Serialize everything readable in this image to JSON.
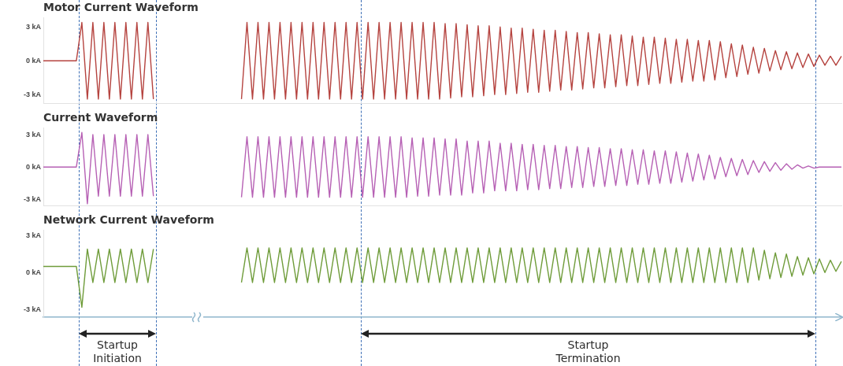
{
  "chart_data": [
    {
      "type": "line",
      "title": "Motor Current Waveform",
      "tick_labels": "y",
      "marker": "none",
      "ylim": [
        -3.8,
        3.8
      ],
      "yticks": [
        {
          "value": 3,
          "label": "3 kA"
        },
        {
          "value": 0,
          "label": "0 kA"
        },
        {
          "value": -3,
          "label": "-3 kA"
        }
      ],
      "categories": [
        null,
        null,
        null,
        null,
        null,
        null,
        null,
        null,
        null,
        null,
        null,
        null,
        null,
        null,
        null,
        null,
        null,
        null,
        null,
        null,
        null,
        null,
        null,
        null,
        null,
        null,
        null,
        null,
        null,
        null,
        null,
        null,
        null,
        null,
        null,
        null,
        null,
        null,
        null,
        null,
        null,
        null,
        null,
        null,
        null,
        null,
        null,
        null,
        null,
        null,
        null,
        null,
        null,
        null,
        null,
        null,
        null,
        null,
        null,
        null,
        null,
        null,
        null,
        null,
        null,
        null,
        null,
        null,
        null,
        null,
        null,
        null,
        null,
        null,
        null,
        null,
        null,
        null,
        null,
        null,
        null,
        null,
        null,
        null,
        null,
        null,
        null,
        null,
        null,
        null,
        null,
        null,
        null,
        null,
        null,
        null,
        null,
        null,
        null,
        null,
        null,
        null,
        null,
        null,
        null,
        null,
        null,
        null,
        null,
        null,
        null,
        null,
        null,
        null,
        null,
        null,
        null,
        null,
        null,
        null,
        null,
        null,
        null,
        null,
        null,
        null,
        null,
        null,
        null,
        null,
        null,
        null,
        null,
        null,
        null,
        null,
        null,
        null,
        null,
        null,
        null,
        null,
        null,
        null,
        null,
        null
      ],
      "series": [
        {
          "color": "#b5433f",
          "values": [
            0,
            0,
            0,
            0,
            0,
            0,
            0,
            3.4,
            -3.4,
            3.4,
            -3.4,
            3.4,
            -3.4,
            3.4,
            -3.4,
            3.4,
            -3.4,
            3.4,
            -3.4,
            3.4,
            -3.4,
            null,
            null,
            null,
            null,
            null,
            null,
            null,
            null,
            null,
            null,
            null,
            null,
            null,
            null,
            null,
            null,
            null,
            null,
            null,
            null,
            null,
            null,
            null,
            null,
            null,
            null,
            null,
            null,
            null,
            null,
            null,
            null,
            null,
            null,
            null,
            null,
            null,
            null,
            null,
            null,
            null,
            null,
            null,
            null,
            null,
            null,
            null,
            null,
            null,
            null,
            null,
            null,
            null,
            null,
            null,
            null,
            null,
            null,
            null,
            null,
            null,
            null,
            null,
            null,
            null,
            null,
            null,
            null,
            null,
            null,
            null,
            null,
            null,
            null,
            null,
            null,
            null,
            null,
            null,
            null,
            null,
            null,
            null,
            null,
            null,
            null,
            null,
            null,
            null,
            null,
            null,
            null,
            null,
            null,
            null,
            null,
            null,
            null,
            null,
            null,
            null,
            null,
            null,
            null,
            null,
            null,
            null,
            null,
            null,
            null,
            null,
            null,
            null,
            null,
            null,
            null,
            null,
            null,
            null,
            null,
            null,
            null,
            null,
            null,
            null
          ]
        },
        {
          "color": "#b5433f",
          "values": [
            null,
            null,
            null,
            null,
            null,
            null,
            null,
            null,
            null,
            null,
            null,
            null,
            null,
            null,
            null,
            null,
            null,
            null,
            null,
            null,
            null,
            null,
            null,
            null,
            null,
            null,
            null,
            null,
            null,
            null,
            null,
            null,
            null,
            null,
            null,
            null,
            -3.4,
            3.4,
            -3.4,
            3.4,
            -3.4,
            3.4,
            -3.4,
            3.4,
            -3.4,
            3.4,
            -3.4,
            3.4,
            -3.4,
            3.4,
            -3.4,
            3.4,
            -3.4,
            3.4,
            -3.4,
            3.4,
            -3.4,
            3.4,
            -3.4,
            3.4,
            -3.4,
            3.4,
            -3.4,
            3.4,
            -3.4,
            3.4,
            -3.4,
            3.4,
            -3.4,
            3.4,
            -3.4,
            3.4,
            -3.4,
            3.3,
            -3.3,
            3.3,
            -3.2,
            3.2,
            -3.2,
            3.1,
            -3.1,
            3.1,
            -3.0,
            3.0,
            -3.0,
            2.9,
            -2.9,
            2.9,
            -2.8,
            2.8,
            -2.8,
            2.7,
            -2.7,
            2.7,
            -2.6,
            2.6,
            -2.6,
            2.5,
            -2.5,
            2.5,
            -2.4,
            2.4,
            -2.4,
            2.3,
            -2.3,
            2.3,
            -2.2,
            2.2,
            -2.2,
            2.1,
            -2.1,
            2.1,
            -2.0,
            2.0,
            -2.0,
            1.9,
            -1.9,
            1.9,
            -1.8,
            1.8,
            -1.8,
            1.8,
            -1.7,
            1.7,
            -1.5,
            1.5,
            -1.4,
            1.4,
            -1.2,
            1.2,
            -1.1,
            1.1,
            -0.9,
            0.9,
            -0.8,
            0.8,
            -0.7,
            0.7,
            -0.6,
            0.6,
            -0.5,
            0.5,
            -0.4,
            0.4,
            -0.4,
            0.4
          ]
        }
      ]
    },
    {
      "type": "line",
      "title": "Current Waveform",
      "tick_labels": "y",
      "marker": "none",
      "ylim": [
        -3.6,
        3.6
      ],
      "yticks": [
        {
          "value": 3,
          "label": "3 kA"
        },
        {
          "value": 0,
          "label": "0 kA"
        },
        {
          "value": -3,
          "label": "-3 kA"
        }
      ],
      "categories": [
        null,
        null,
        null,
        null,
        null,
        null,
        null,
        null,
        null,
        null,
        null,
        null,
        null,
        null,
        null,
        null,
        null,
        null,
        null,
        null,
        null,
        null,
        null,
        null,
        null,
        null,
        null,
        null,
        null,
        null,
        null,
        null,
        null,
        null,
        null,
        null,
        null,
        null,
        null,
        null,
        null,
        null,
        null,
        null,
        null,
        null,
        null,
        null,
        null,
        null,
        null,
        null,
        null,
        null,
        null,
        null,
        null,
        null,
        null,
        null,
        null,
        null,
        null,
        null,
        null,
        null,
        null,
        null,
        null,
        null,
        null,
        null,
        null,
        null,
        null,
        null,
        null,
        null,
        null,
        null,
        null,
        null,
        null,
        null,
        null,
        null,
        null,
        null,
        null,
        null,
        null,
        null,
        null,
        null,
        null,
        null,
        null,
        null,
        null,
        null,
        null,
        null,
        null,
        null,
        null,
        null,
        null,
        null,
        null,
        null,
        null,
        null,
        null,
        null,
        null,
        null,
        null,
        null,
        null,
        null,
        null,
        null,
        null,
        null,
        null,
        null,
        null,
        null,
        null,
        null,
        null,
        null,
        null,
        null,
        null,
        null,
        null,
        null,
        null,
        null,
        null,
        null,
        null,
        null,
        null,
        null
      ],
      "series": [
        {
          "color": "#b660b4",
          "values": [
            0,
            0,
            0,
            0,
            0,
            0,
            0,
            3.2,
            -3.4,
            3.0,
            -2.7,
            3.0,
            -2.7,
            3.0,
            -2.7,
            3.0,
            -2.7,
            3.0,
            -2.7,
            3.0,
            -2.7,
            null,
            null,
            null,
            null,
            null,
            null,
            null,
            null,
            null,
            null,
            null,
            null,
            null,
            null,
            null,
            null,
            null,
            null,
            null,
            null,
            null,
            null,
            null,
            null,
            null,
            null,
            null,
            null,
            null,
            null,
            null,
            null,
            null,
            null,
            null,
            null,
            null,
            null,
            null,
            null,
            null,
            null,
            null,
            null,
            null,
            null,
            null,
            null,
            null,
            null,
            null,
            null,
            null,
            null,
            null,
            null,
            null,
            null,
            null,
            null,
            null,
            null,
            null,
            null,
            null,
            null,
            null,
            null,
            null,
            null,
            null,
            null,
            null,
            null,
            null,
            null,
            null,
            null,
            null,
            null,
            null,
            null,
            null,
            null,
            null,
            null,
            null,
            null,
            null,
            null,
            null,
            null,
            null,
            null,
            null,
            null,
            null,
            null,
            null,
            null,
            null,
            null,
            null,
            null,
            null,
            null,
            null,
            null,
            null,
            null,
            null,
            null,
            null,
            null,
            null,
            null,
            null,
            null,
            null,
            null,
            null,
            null,
            null,
            null,
            null
          ]
        },
        {
          "color": "#b660b4",
          "values": [
            null,
            null,
            null,
            null,
            null,
            null,
            null,
            null,
            null,
            null,
            null,
            null,
            null,
            null,
            null,
            null,
            null,
            null,
            null,
            null,
            null,
            null,
            null,
            null,
            null,
            null,
            null,
            null,
            null,
            null,
            null,
            null,
            null,
            null,
            null,
            null,
            -2.8,
            2.8,
            -2.8,
            2.8,
            -2.8,
            2.8,
            -2.8,
            2.8,
            -2.8,
            2.8,
            -2.8,
            2.8,
            -2.8,
            2.8,
            -2.8,
            2.8,
            -2.8,
            2.8,
            -2.8,
            2.8,
            -2.8,
            2.8,
            -2.8,
            2.8,
            -2.8,
            2.8,
            -2.8,
            2.8,
            -2.8,
            2.8,
            -2.8,
            2.7,
            -2.7,
            2.7,
            -2.7,
            2.7,
            -2.6,
            2.6,
            -2.6,
            2.6,
            -2.6,
            2.4,
            -2.4,
            2.4,
            -2.4,
            2.4,
            -2.2,
            2.2,
            -2.2,
            2.2,
            -2.2,
            2.1,
            -2.1,
            2.1,
            -2.1,
            2.0,
            -2.0,
            2.0,
            -2.0,
            1.9,
            -1.9,
            1.9,
            -1.9,
            1.8,
            -1.8,
            1.8,
            -1.8,
            1.7,
            -1.7,
            1.7,
            -1.7,
            1.6,
            -1.6,
            1.6,
            -1.6,
            1.5,
            -1.5,
            1.5,
            -1.5,
            1.4,
            -1.4,
            1.3,
            -1.3,
            1.2,
            -1.2,
            1.1,
            -1.1,
            0.9,
            -0.9,
            0.8,
            -0.8,
            0.7,
            -0.7,
            0.6,
            -0.5,
            0.5,
            -0.4,
            0.4,
            -0.3,
            0.3,
            -0.2,
            0.2,
            -0.1,
            0.1,
            -0.1,
            0,
            0,
            0,
            0,
            0
          ]
        }
      ]
    },
    {
      "type": "line",
      "title": "Network Current Waveform",
      "tick_labels": "y",
      "marker": "none",
      "ylim": [
        -3.6,
        3.4
      ],
      "yticks": [
        {
          "value": 3,
          "label": "3 kA"
        },
        {
          "value": 0,
          "label": "0 kA"
        },
        {
          "value": -3,
          "label": "-3 kA"
        }
      ],
      "categories": [
        null,
        null,
        null,
        null,
        null,
        null,
        null,
        null,
        null,
        null,
        null,
        null,
        null,
        null,
        null,
        null,
        null,
        null,
        null,
        null,
        null,
        null,
        null,
        null,
        null,
        null,
        null,
        null,
        null,
        null,
        null,
        null,
        null,
        null,
        null,
        null,
        null,
        null,
        null,
        null,
        null,
        null,
        null,
        null,
        null,
        null,
        null,
        null,
        null,
        null,
        null,
        null,
        null,
        null,
        null,
        null,
        null,
        null,
        null,
        null,
        null,
        null,
        null,
        null,
        null,
        null,
        null,
        null,
        null,
        null,
        null,
        null,
        null,
        null,
        null,
        null,
        null,
        null,
        null,
        null,
        null,
        null,
        null,
        null,
        null,
        null,
        null,
        null,
        null,
        null,
        null,
        null,
        null,
        null,
        null,
        null,
        null,
        null,
        null,
        null,
        null,
        null,
        null,
        null,
        null,
        null,
        null,
        null,
        null,
        null,
        null,
        null,
        null,
        null,
        null,
        null,
        null,
        null,
        null,
        null,
        null,
        null,
        null,
        null,
        null,
        null,
        null,
        null,
        null,
        null,
        null,
        null,
        null,
        null,
        null,
        null,
        null,
        null,
        null,
        null,
        null,
        null,
        null,
        null,
        null,
        null
      ],
      "series": [
        {
          "color": "#6f9c3a",
          "values": [
            0.5,
            0.5,
            0.5,
            0.5,
            0.5,
            0.5,
            0.5,
            -2.8,
            1.9,
            -0.8,
            1.9,
            -0.8,
            1.9,
            -0.8,
            1.9,
            -0.8,
            1.9,
            -0.8,
            1.9,
            -0.8,
            1.9,
            null,
            null,
            null,
            null,
            null,
            null,
            null,
            null,
            null,
            null,
            null,
            null,
            null,
            null,
            null,
            null,
            null,
            null,
            null,
            null,
            null,
            null,
            null,
            null,
            null,
            null,
            null,
            null,
            null,
            null,
            null,
            null,
            null,
            null,
            null,
            null,
            null,
            null,
            null,
            null,
            null,
            null,
            null,
            null,
            null,
            null,
            null,
            null,
            null,
            null,
            null,
            null,
            null,
            null,
            null,
            null,
            null,
            null,
            null,
            null,
            null,
            null,
            null,
            null,
            null,
            null,
            null,
            null,
            null,
            null,
            null,
            null,
            null,
            null,
            null,
            null,
            null,
            null,
            null,
            null,
            null,
            null,
            null,
            null,
            null,
            null,
            null,
            null,
            null,
            null,
            null,
            null,
            null,
            null,
            null,
            null,
            null,
            null,
            null,
            null,
            null,
            null,
            null,
            null,
            null,
            null,
            null,
            null,
            null,
            null,
            null,
            null,
            null,
            null,
            null,
            null,
            null,
            null,
            null,
            null,
            null,
            null,
            null,
            null,
            null
          ]
        },
        {
          "color": "#6f9c3a",
          "values": [
            null,
            null,
            null,
            null,
            null,
            null,
            null,
            null,
            null,
            null,
            null,
            null,
            null,
            null,
            null,
            null,
            null,
            null,
            null,
            null,
            null,
            null,
            null,
            null,
            null,
            null,
            null,
            null,
            null,
            null,
            null,
            null,
            null,
            null,
            null,
            null,
            -0.8,
            2.0,
            -0.8,
            2.0,
            -0.8,
            2.0,
            -0.8,
            2.0,
            -0.8,
            2.0,
            -0.8,
            2.0,
            -0.8,
            2.0,
            -0.8,
            2.0,
            -0.8,
            2.0,
            -0.8,
            2.0,
            -0.8,
            2.0,
            -0.8,
            2.0,
            -0.8,
            2.0,
            -0.8,
            2.0,
            -0.8,
            2.0,
            -0.8,
            2.0,
            -0.8,
            2.0,
            -0.8,
            2.0,
            -0.8,
            2.0,
            -0.8,
            2.0,
            -0.8,
            2.0,
            -0.8,
            2.0,
            -0.8,
            2.0,
            -0.8,
            2.0,
            -0.8,
            2.0,
            -0.8,
            2.0,
            -0.8,
            2.0,
            -0.8,
            2.0,
            -0.8,
            2.0,
            -0.8,
            2.0,
            -0.8,
            2.0,
            -0.8,
            2.0,
            -0.8,
            2.0,
            -0.8,
            2.0,
            -0.8,
            2.0,
            -0.8,
            2.0,
            -0.8,
            2.0,
            -0.8,
            2.0,
            -0.8,
            2.0,
            -0.8,
            2.0,
            -0.8,
            2.0,
            -0.8,
            2.0,
            -0.8,
            2.0,
            -0.8,
            2.0,
            -0.8,
            2.0,
            -0.8,
            2.0,
            -0.8,
            2.0,
            -0.6,
            1.8,
            -0.5,
            1.6,
            -0.4,
            1.5,
            -0.3,
            1.3,
            -0.2,
            1.2,
            -0.1,
            1.1,
            0.0,
            1.0,
            0.1,
            0.9
          ]
        }
      ],
      "annotations": [
        "Startup Initiation",
        "Startup Termination"
      ]
    }
  ]
}
